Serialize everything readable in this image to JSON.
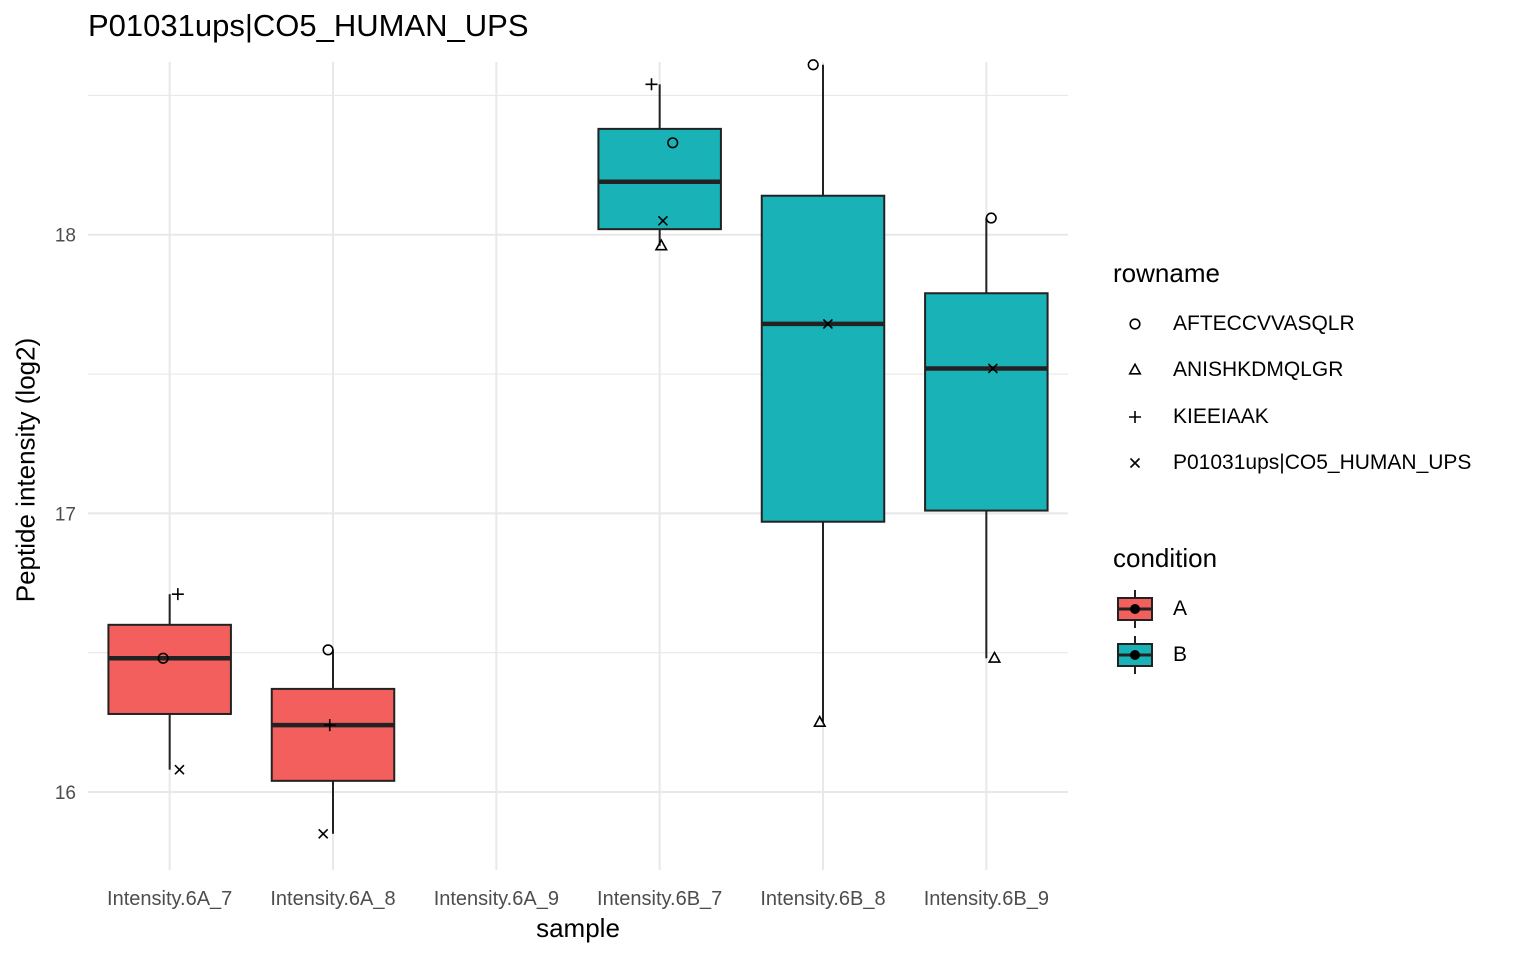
{
  "chart_data": {
    "type": "box",
    "title": "P01031ups|CO5_HUMAN_UPS",
    "xlabel": "sample",
    "ylabel": "Peptide intensity (log2)",
    "categories": [
      "Intensity.6A_7",
      "Intensity.6A_8",
      "Intensity.6A_9",
      "Intensity.6B_7",
      "Intensity.6B_8",
      "Intensity.6B_9"
    ],
    "ylim": [
      15.72,
      18.62
    ],
    "yticks": [
      16,
      17,
      18
    ],
    "grid": true,
    "legend_position": "right",
    "boxes": [
      {
        "category": "Intensity.6A_7",
        "condition": "A",
        "whisker_low": 16.08,
        "q1": 16.28,
        "median": 16.48,
        "q3": 16.6,
        "whisker_high": 16.71
      },
      {
        "category": "Intensity.6A_8",
        "condition": "A",
        "whisker_low": 15.85,
        "q1": 16.04,
        "median": 16.24,
        "q3": 16.37,
        "whisker_high": 16.51
      },
      {
        "category": "Intensity.6B_7",
        "condition": "B",
        "whisker_low": 17.96,
        "q1": 18.02,
        "median": 18.19,
        "q3": 18.38,
        "whisker_high": 18.54
      },
      {
        "category": "Intensity.6B_8",
        "condition": "B",
        "whisker_low": 16.25,
        "q1": 16.97,
        "median": 17.68,
        "q3": 18.14,
        "whisker_high": 18.61
      },
      {
        "category": "Intensity.6B_9",
        "condition": "B",
        "whisker_low": 16.48,
        "q1": 17.01,
        "median": 17.52,
        "q3": 17.79,
        "whisker_high": 18.06
      }
    ],
    "points": [
      {
        "category": "Intensity.6A_7",
        "rowname": "KIEEIAAK",
        "y": 16.71,
        "jitter": 0.05
      },
      {
        "category": "Intensity.6A_7",
        "rowname": "AFTECCVVASQLR",
        "y": 16.48,
        "jitter": -0.04
      },
      {
        "category": "Intensity.6A_7",
        "rowname": "P01031ups|CO5_HUMAN_UPS",
        "y": 16.08,
        "jitter": 0.06
      },
      {
        "category": "Intensity.6A_8",
        "rowname": "AFTECCVVASQLR",
        "y": 16.51,
        "jitter": -0.03
      },
      {
        "category": "Intensity.6A_8",
        "rowname": "KIEEIAAK",
        "y": 16.24,
        "jitter": -0.02
      },
      {
        "category": "Intensity.6A_8",
        "rowname": "P01031ups|CO5_HUMAN_UPS",
        "y": 15.85,
        "jitter": -0.06
      },
      {
        "category": "Intensity.6B_7",
        "rowname": "KIEEIAAK",
        "y": 18.54,
        "jitter": -0.05
      },
      {
        "category": "Intensity.6B_7",
        "rowname": "AFTECCVVASQLR",
        "y": 18.33,
        "jitter": 0.08
      },
      {
        "category": "Intensity.6B_7",
        "rowname": "P01031ups|CO5_HUMAN_UPS",
        "y": 18.05,
        "jitter": 0.02
      },
      {
        "category": "Intensity.6B_7",
        "rowname": "ANISHKDMQLGR",
        "y": 17.96,
        "jitter": 0.01
      },
      {
        "category": "Intensity.6B_8",
        "rowname": "AFTECCVVASQLR",
        "y": 18.61,
        "jitter": -0.06
      },
      {
        "category": "Intensity.6B_8",
        "rowname": "P01031ups|CO5_HUMAN_UPS",
        "y": 17.68,
        "jitter": 0.03
      },
      {
        "category": "Intensity.6B_8",
        "rowname": "ANISHKDMQLGR",
        "y": 16.25,
        "jitter": -0.02
      },
      {
        "category": "Intensity.6B_9",
        "rowname": "AFTECCVVASQLR",
        "y": 18.06,
        "jitter": 0.03
      },
      {
        "category": "Intensity.6B_9",
        "rowname": "P01031ups|CO5_HUMAN_UPS",
        "y": 17.52,
        "jitter": 0.04
      },
      {
        "category": "Intensity.6B_9",
        "rowname": "ANISHKDMQLGR",
        "y": 16.48,
        "jitter": 0.05
      }
    ],
    "legend_rowname": {
      "title": "rowname",
      "items": [
        {
          "label": "AFTECCVVASQLR",
          "shape": "circle"
        },
        {
          "label": "ANISHKDMQLGR",
          "shape": "triangle"
        },
        {
          "label": "KIEEIAAK",
          "shape": "plus"
        },
        {
          "label": "P01031ups|CO5_HUMAN_UPS",
          "shape": "cross"
        }
      ]
    },
    "legend_condition": {
      "title": "condition",
      "items": [
        {
          "label": "A",
          "color": "#F8766D"
        },
        {
          "label": "B",
          "color": "#00BFC4"
        }
      ]
    },
    "colors": {
      "A": "#F25F5C",
      "B": "#19B3B7",
      "grid": "#E8E8E8",
      "box_line": "#222222"
    }
  }
}
